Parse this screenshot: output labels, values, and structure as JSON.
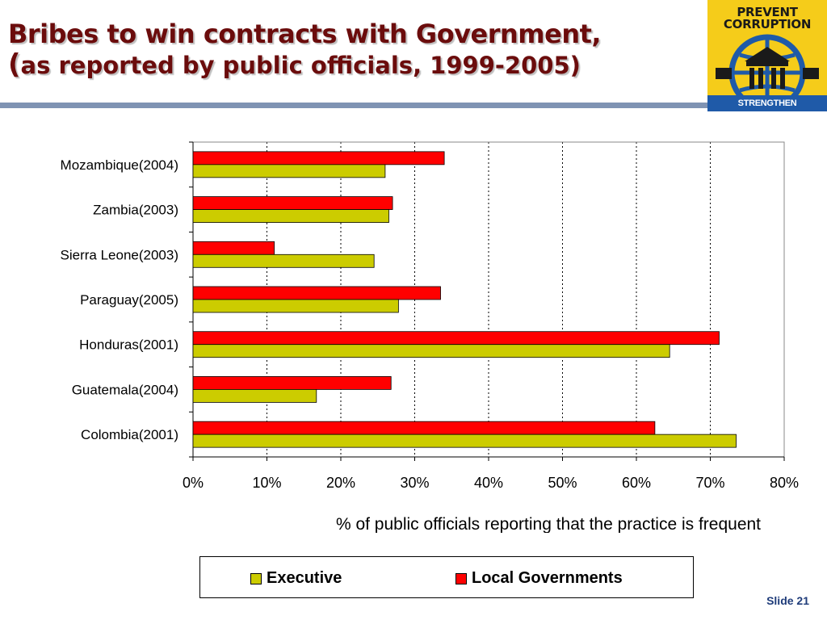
{
  "title": {
    "line1": "Bribes to win contracts with Government,",
    "line2_paren": "(",
    "line2": "as reported by public officials, 1999-2005)"
  },
  "logo": {
    "line1": "PREVENT",
    "line2": "CORRUPTION",
    "band": "STRENGTHEN INSTITUTIONS",
    "colors": {
      "background": "#f5cc1a",
      "band": "#1f5aa8"
    }
  },
  "slide_label": "Slide 21",
  "colors": {
    "executive": "#cccc00",
    "local": "#ff0000",
    "title": "#6b0c0c"
  },
  "chart_data": {
    "type": "bar",
    "orientation": "horizontal",
    "categories": [
      "Mozambique(2004)",
      "Zambia(2003)",
      "Sierra Leone(2003)",
      "Paraguay(2005)",
      "Honduras(2001)",
      "Guatemala(2004)",
      "Colombia(2001)"
    ],
    "series": [
      {
        "name": "Executive",
        "color": "#cccc00",
        "values": [
          26,
          26.5,
          24.5,
          27.8,
          64.5,
          16.7,
          73.5
        ]
      },
      {
        "name": "Local Governments",
        "color": "#ff0000",
        "values": [
          34,
          27,
          11,
          33.5,
          71.2,
          26.8,
          62.5
        ]
      }
    ],
    "xlabel": "% of public officials reporting that the practice is frequent",
    "ylabel": "",
    "xlim": [
      0,
      80
    ],
    "xticks": [
      0,
      10,
      20,
      30,
      40,
      50,
      60,
      70,
      80
    ],
    "tick_format": "percent",
    "grid": "vertical-dotted",
    "legend_position": "bottom"
  }
}
